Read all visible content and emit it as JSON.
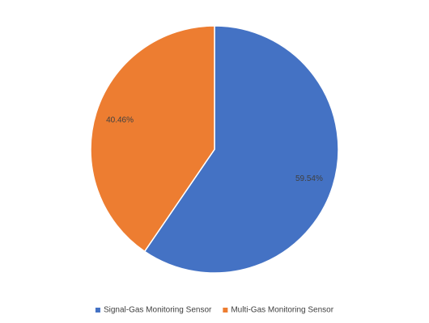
{
  "chart_data": {
    "type": "pie",
    "categories": [
      "Signal-Gas Monitoring Sensor",
      "Multi-Gas Monitoring Sensor"
    ],
    "values": [
      59.54,
      40.46
    ],
    "value_labels": [
      "59.54%",
      "40.46%"
    ],
    "colors": [
      "#4472c4",
      "#ed7d31"
    ],
    "legend": "bottom"
  }
}
